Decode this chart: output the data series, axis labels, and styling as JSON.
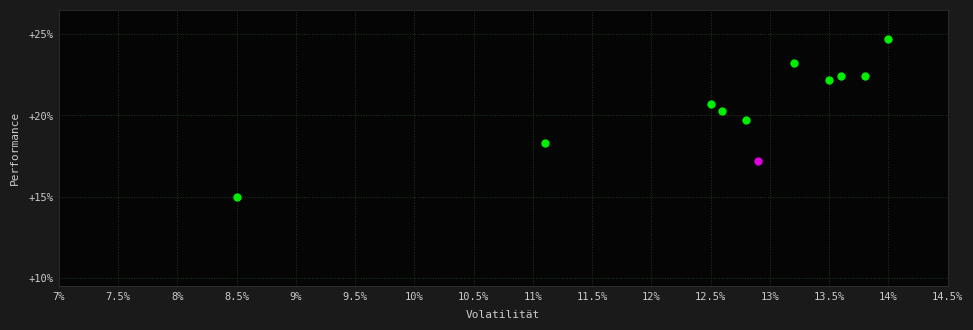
{
  "background_color": "#1a1a1a",
  "plot_color": "#050505",
  "grid_color": "#1e3a1e",
  "grid_style": ":",
  "xlabel": "Volatilität",
  "ylabel": "Performance",
  "label_color": "#cccccc",
  "tick_color": "#cccccc",
  "xlim": [
    0.07,
    0.145
  ],
  "ylim": [
    0.095,
    0.265
  ],
  "xticks": [
    0.07,
    0.075,
    0.08,
    0.085,
    0.09,
    0.095,
    0.1,
    0.105,
    0.11,
    0.115,
    0.12,
    0.125,
    0.13,
    0.135,
    0.14,
    0.145
  ],
  "yticks": [
    0.1,
    0.15,
    0.2,
    0.25
  ],
  "ytick_labels": [
    "+10%",
    "+15%",
    "+20%",
    "+25%"
  ],
  "green_points": [
    [
      0.085,
      0.15
    ],
    [
      0.111,
      0.183
    ],
    [
      0.125,
      0.207
    ],
    [
      0.126,
      0.2025
    ],
    [
      0.128,
      0.197
    ],
    [
      0.132,
      0.232
    ],
    [
      0.135,
      0.222
    ],
    [
      0.136,
      0.224
    ],
    [
      0.138,
      0.224
    ],
    [
      0.14,
      0.247
    ]
  ],
  "magenta_points": [
    [
      0.129,
      0.172
    ]
  ],
  "green_color": "#00ee00",
  "magenta_color": "#dd00dd",
  "marker_size": 6,
  "font_size_labels": 8,
  "font_size_ticks": 7.5,
  "font_family": "monospace"
}
